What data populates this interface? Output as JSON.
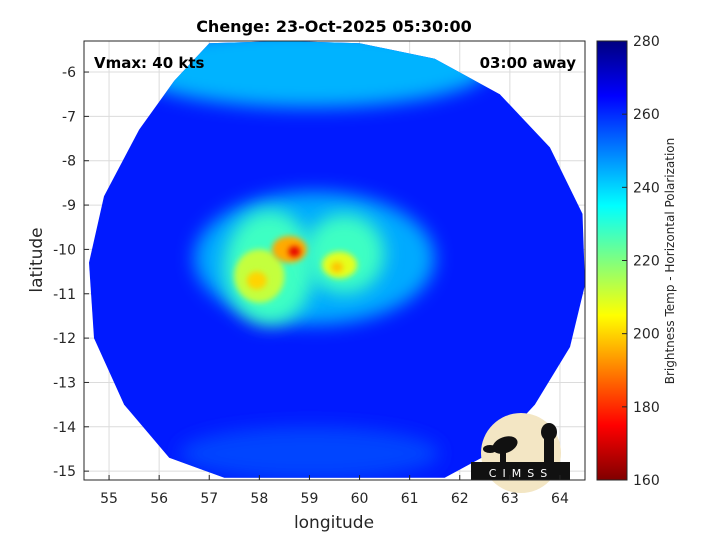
{
  "chart_data": {
    "type": "heatmap",
    "title": "Chenge: 23-Oct-2025 05:30:00",
    "xlabel": "longitude",
    "ylabel": "latitude",
    "xlim": [
      54.5,
      64.5
    ],
    "ylim": [
      -15.2,
      -5.3
    ],
    "x_ticks": [
      "55",
      "56",
      "57",
      "58",
      "59",
      "60",
      "61",
      "62",
      "63",
      "64"
    ],
    "y_ticks": [
      "-6",
      "-7",
      "-8",
      "-9",
      "-10",
      "-11",
      "-12",
      "-13",
      "-14",
      "-15"
    ],
    "grid": true,
    "annotations": {
      "left": "Vmax: 40 kts",
      "right": "03:00 away"
    },
    "colorbar": {
      "label": "Brightness Temp - Horizontal Polarization",
      "min": 160,
      "max": 280,
      "ticks": [
        "280",
        "260",
        "240",
        "220",
        "200",
        "180",
        "160"
      ],
      "colormap": "jet"
    },
    "field": {
      "background_value": 262,
      "swath_outline": [
        [
          57.0,
          -5.35
        ],
        [
          58.5,
          -5.3
        ],
        [
          60.0,
          -5.35
        ],
        [
          61.5,
          -5.7
        ],
        [
          62.8,
          -6.5
        ],
        [
          63.8,
          -7.7
        ],
        [
          64.45,
          -9.2
        ],
        [
          64.5,
          -10.8
        ],
        [
          64.2,
          -12.2
        ],
        [
          63.5,
          -13.5
        ],
        [
          62.6,
          -14.6
        ],
        [
          61.7,
          -15.15
        ],
        [
          57.3,
          -15.15
        ],
        [
          56.2,
          -14.7
        ],
        [
          55.3,
          -13.5
        ],
        [
          54.7,
          -12.0
        ],
        [
          54.6,
          -10.3
        ],
        [
          54.9,
          -8.8
        ],
        [
          55.6,
          -7.3
        ],
        [
          56.3,
          -6.2
        ]
      ],
      "features": [
        {
          "lon": 59.0,
          "lat": -5.9,
          "rx": 3.6,
          "ry": 0.9,
          "value": 244
        },
        {
          "lon": 59.0,
          "lat": -14.6,
          "rx": 2.6,
          "ry": 0.6,
          "value": 257
        },
        {
          "lon": 59.1,
          "lat": -10.2,
          "rx": 2.4,
          "ry": 1.5,
          "value": 245
        },
        {
          "lon": 58.2,
          "lat": -10.4,
          "rx": 0.9,
          "ry": 1.3,
          "value": 228
        },
        {
          "lon": 59.7,
          "lat": -10.1,
          "rx": 0.8,
          "ry": 0.9,
          "value": 228
        },
        {
          "lon": 58.0,
          "lat": -10.6,
          "rx": 0.5,
          "ry": 0.6,
          "value": 212
        },
        {
          "lon": 58.6,
          "lat": -10.0,
          "rx": 0.35,
          "ry": 0.3,
          "value": 195
        },
        {
          "lon": 58.7,
          "lat": -10.05,
          "rx": 0.12,
          "ry": 0.12,
          "value": 172
        },
        {
          "lon": 57.95,
          "lat": -10.7,
          "rx": 0.2,
          "ry": 0.2,
          "value": 200
        },
        {
          "lon": 59.6,
          "lat": -10.35,
          "rx": 0.35,
          "ry": 0.3,
          "value": 208
        },
        {
          "lon": 59.55,
          "lat": -10.4,
          "rx": 0.12,
          "ry": 0.12,
          "value": 198
        }
      ]
    }
  },
  "logo": {
    "text": "CIMSS"
  }
}
